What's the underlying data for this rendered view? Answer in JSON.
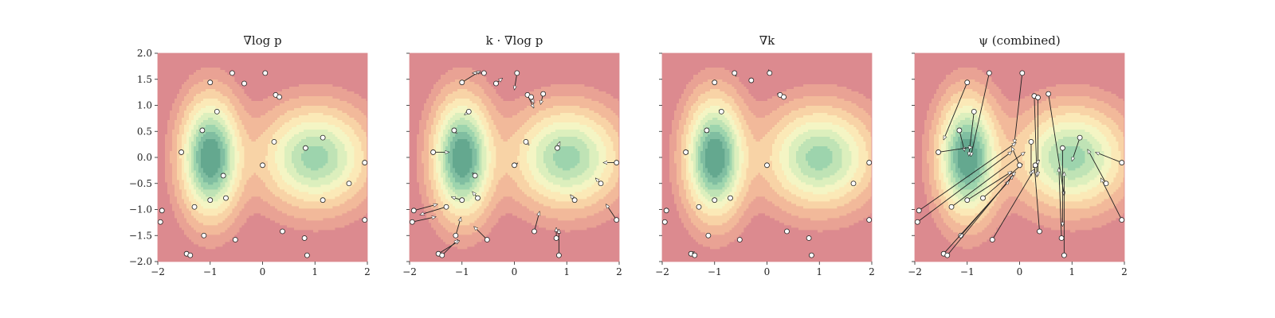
{
  "chart_data": [
    {
      "type": "contour",
      "title": "∇log p",
      "xlim": [
        -2,
        2
      ],
      "ylim": [
        -2,
        2
      ],
      "xticks": [
        "−2",
        "−1",
        "0",
        "1",
        "2"
      ],
      "yticks": [
        "2.0",
        "1.5",
        "1.0",
        "0.5",
        "0.0",
        "−0.5",
        "−1.0",
        "−1.5",
        "−2.0"
      ],
      "show_yticklabels": true,
      "density": {
        "modes": [
          {
            "x": -1,
            "y": 0,
            "sx": 0.35,
            "sy": 0.7,
            "w": 1.0
          },
          {
            "x": 1,
            "y": 0,
            "sx": 0.65,
            "sy": 0.6,
            "w": 0.72
          }
        ]
      },
      "particles": [
        {
          "x": -1.0,
          "y": 1.44,
          "dx": 0.0,
          "dy": 0.0
        },
        {
          "x": -0.58,
          "y": 1.62,
          "dx": 0.0,
          "dy": 0.0
        },
        {
          "x": -0.35,
          "y": 1.42,
          "dx": 0.0,
          "dy": 0.0
        },
        {
          "x": 0.05,
          "y": 1.62,
          "dx": 0.0,
          "dy": 0.0
        },
        {
          "x": 0.25,
          "y": 1.2,
          "dx": 0.0,
          "dy": 0.0
        },
        {
          "x": 0.32,
          "y": 1.16,
          "dx": 0.0,
          "dy": 0.0
        },
        {
          "x": -0.87,
          "y": 0.88,
          "dx": 0.0,
          "dy": 0.0
        },
        {
          "x": -1.15,
          "y": 0.52,
          "dx": 0.0,
          "dy": 0.0
        },
        {
          "x": -1.55,
          "y": 0.1,
          "dx": 0.0,
          "dy": 0.0
        },
        {
          "x": 0.22,
          "y": 0.3,
          "dx": 0.0,
          "dy": 0.0
        },
        {
          "x": 0.82,
          "y": 0.18,
          "dx": 0.0,
          "dy": 0.0
        },
        {
          "x": 1.15,
          "y": 0.38,
          "dx": 0.0,
          "dy": 0.0
        },
        {
          "x": 0.0,
          "y": -0.15,
          "dx": 0.0,
          "dy": 0.0
        },
        {
          "x": -0.75,
          "y": -0.35,
          "dx": 0.0,
          "dy": 0.0
        },
        {
          "x": -0.7,
          "y": -0.78,
          "dx": 0.0,
          "dy": 0.0
        },
        {
          "x": -1.0,
          "y": -0.82,
          "dx": 0.0,
          "dy": 0.0
        },
        {
          "x": -1.3,
          "y": -0.95,
          "dx": 0.0,
          "dy": 0.0
        },
        {
          "x": 1.65,
          "y": -0.5,
          "dx": 0.0,
          "dy": 0.0
        },
        {
          "x": 1.95,
          "y": -0.1,
          "dx": 0.0,
          "dy": 0.0
        },
        {
          "x": 1.15,
          "y": -0.82,
          "dx": 0.0,
          "dy": 0.0
        },
        {
          "x": -1.92,
          "y": -1.02,
          "dx": 0.0,
          "dy": 0.0
        },
        {
          "x": -1.95,
          "y": -1.24,
          "dx": 0.0,
          "dy": 0.0
        },
        {
          "x": 1.95,
          "y": -1.2,
          "dx": 0.0,
          "dy": 0.0
        },
        {
          "x": -1.12,
          "y": -1.5,
          "dx": 0.0,
          "dy": 0.0
        },
        {
          "x": -0.52,
          "y": -1.58,
          "dx": 0.0,
          "dy": 0.0
        },
        {
          "x": 0.38,
          "y": -1.42,
          "dx": 0.0,
          "dy": 0.0
        },
        {
          "x": 0.8,
          "y": -1.55,
          "dx": 0.0,
          "dy": 0.0
        },
        {
          "x": -1.45,
          "y": -1.85,
          "dx": 0.0,
          "dy": 0.0
        },
        {
          "x": -1.38,
          "y": -1.88,
          "dx": 0.0,
          "dy": 0.0
        },
        {
          "x": 0.85,
          "y": -1.88,
          "dx": 0.0,
          "dy": 0.0
        }
      ]
    },
    {
      "type": "contour",
      "title": "k · ∇log p",
      "xlim": [
        -2,
        2
      ],
      "ylim": [
        -2,
        2
      ],
      "xticks": [
        "−2",
        "−1",
        "0",
        "1",
        "2"
      ],
      "yticks": [
        "",
        "",
        "",
        "",
        "",
        "",
        "",
        "",
        ""
      ],
      "show_yticklabels": false,
      "density": {
        "modes": [
          {
            "x": -1,
            "y": 0,
            "sx": 0.35,
            "sy": 0.7,
            "w": 1.0
          },
          {
            "x": 1,
            "y": 0,
            "sx": 0.65,
            "sy": 0.6,
            "w": 0.72
          }
        ]
      },
      "particles": [
        {
          "x": -1.0,
          "y": 1.44,
          "dx": 0.35,
          "dy": 0.22
        },
        {
          "x": -0.58,
          "y": 1.62,
          "dx": -0.22,
          "dy": 0.0
        },
        {
          "x": -0.35,
          "y": 1.42,
          "dx": 0.12,
          "dy": 0.1
        },
        {
          "x": 0.05,
          "y": 1.62,
          "dx": -0.05,
          "dy": -0.32
        },
        {
          "x": 0.25,
          "y": 1.2,
          "dx": 0.12,
          "dy": -0.25
        },
        {
          "x": 0.32,
          "y": 1.16,
          "dx": 0.05,
          "dy": -0.12
        },
        {
          "x": 0.55,
          "y": 1.22,
          "dx": -0.05,
          "dy": -0.2
        },
        {
          "x": -0.87,
          "y": 0.88,
          "dx": -0.08,
          "dy": -0.06
        },
        {
          "x": -1.15,
          "y": 0.52,
          "dx": 0.05,
          "dy": -0.06
        },
        {
          "x": -1.55,
          "y": 0.1,
          "dx": 0.3,
          "dy": 0.0
        },
        {
          "x": 0.22,
          "y": 0.3,
          "dx": 0.06,
          "dy": -0.06
        },
        {
          "x": 0.82,
          "y": 0.18,
          "dx": 0.05,
          "dy": 0.12
        },
        {
          "x": 0.0,
          "y": -0.15,
          "dx": 0.06,
          "dy": 0.04
        },
        {
          "x": -0.75,
          "y": -0.35,
          "dx": -0.05,
          "dy": 0.05
        },
        {
          "x": -0.7,
          "y": -0.78,
          "dx": -0.1,
          "dy": 0.12
        },
        {
          "x": -1.0,
          "y": -0.82,
          "dx": -0.2,
          "dy": 0.06
        },
        {
          "x": -1.3,
          "y": -0.95,
          "dx": -0.5,
          "dy": -0.15
        },
        {
          "x": 1.65,
          "y": -0.5,
          "dx": -0.1,
          "dy": 0.1
        },
        {
          "x": 1.95,
          "y": -0.1,
          "dx": -0.25,
          "dy": 0.0
        },
        {
          "x": 1.15,
          "y": -0.82,
          "dx": -0.08,
          "dy": 0.1
        },
        {
          "x": -1.92,
          "y": -1.02,
          "dx": 0.45,
          "dy": 0.12
        },
        {
          "x": -1.95,
          "y": -1.24,
          "dx": 0.45,
          "dy": 0.1
        },
        {
          "x": 1.95,
          "y": -1.2,
          "dx": -0.2,
          "dy": 0.3
        },
        {
          "x": -1.12,
          "y": -1.5,
          "dx": 0.1,
          "dy": 0.35
        },
        {
          "x": -0.52,
          "y": -1.58,
          "dx": -0.25,
          "dy": 0.25
        },
        {
          "x": 0.38,
          "y": -1.42,
          "dx": 0.1,
          "dy": 0.38
        },
        {
          "x": 0.8,
          "y": -1.55,
          "dx": 0.0,
          "dy": 0.2
        },
        {
          "x": -1.45,
          "y": -1.85,
          "dx": 0.4,
          "dy": 0.25
        },
        {
          "x": -1.38,
          "y": -1.88,
          "dx": 0.3,
          "dy": 0.3
        },
        {
          "x": 0.85,
          "y": -1.88,
          "dx": 0.0,
          "dy": 0.5
        }
      ]
    },
    {
      "type": "contour",
      "title": "∇k",
      "xlim": [
        -2,
        2
      ],
      "ylim": [
        -2,
        2
      ],
      "xticks": [
        "−2",
        "−1",
        "0",
        "1",
        "2"
      ],
      "yticks": [
        "",
        "",
        "",
        "",
        "",
        "",
        "",
        "",
        ""
      ],
      "show_yticklabels": false,
      "density": {
        "modes": [
          {
            "x": -1,
            "y": 0,
            "sx": 0.35,
            "sy": 0.7,
            "w": 1.0
          },
          {
            "x": 1,
            "y": 0,
            "sx": 0.65,
            "sy": 0.6,
            "w": 0.72
          }
        ]
      },
      "particles": [
        {
          "x": -1.0,
          "y": 1.44,
          "dx": -0.04,
          "dy": 0.02
        },
        {
          "x": -0.62,
          "y": 1.62,
          "dx": 0.03,
          "dy": -0.06
        },
        {
          "x": -0.3,
          "y": 1.48,
          "dx": -0.03,
          "dy": 0.02
        },
        {
          "x": 0.05,
          "y": 1.62,
          "dx": -0.02,
          "dy": 0.06
        },
        {
          "x": 0.25,
          "y": 1.2,
          "dx": -0.05,
          "dy": 0.02
        },
        {
          "x": 0.32,
          "y": 1.16,
          "dx": 0.04,
          "dy": -0.02
        },
        {
          "x": -0.87,
          "y": 0.88,
          "dx": -0.04,
          "dy": 0.03
        },
        {
          "x": -1.15,
          "y": 0.52,
          "dx": 0.0,
          "dy": 0.03
        },
        {
          "x": -1.55,
          "y": 0.1,
          "dx": -0.02,
          "dy": 0.0
        },
        {
          "x": 0.0,
          "y": -0.15,
          "dx": 0.0,
          "dy": 0.0
        },
        {
          "x": -1.0,
          "y": -0.82,
          "dx": 0.0,
          "dy": 0.0
        },
        {
          "x": -1.3,
          "y": -0.95,
          "dx": 0.0,
          "dy": 0.0
        },
        {
          "x": -0.7,
          "y": -0.78,
          "dx": 0.0,
          "dy": 0.0
        },
        {
          "x": 1.65,
          "y": -0.5,
          "dx": 0.0,
          "dy": 0.0
        },
        {
          "x": 1.95,
          "y": -0.1,
          "dx": 0.0,
          "dy": 0.0
        },
        {
          "x": -1.92,
          "y": -1.02,
          "dx": 0.04,
          "dy": 0.0
        },
        {
          "x": -1.95,
          "y": -1.24,
          "dx": 0.04,
          "dy": 0.0
        },
        {
          "x": 1.95,
          "y": -1.2,
          "dx": 0.0,
          "dy": 0.0
        },
        {
          "x": -1.12,
          "y": -1.5,
          "dx": 0.0,
          "dy": 0.0
        },
        {
          "x": -0.52,
          "y": -1.58,
          "dx": 0.0,
          "dy": 0.0
        },
        {
          "x": 0.38,
          "y": -1.42,
          "dx": 0.0,
          "dy": 0.0
        },
        {
          "x": 0.8,
          "y": -1.55,
          "dx": 0.0,
          "dy": 0.0
        },
        {
          "x": -1.45,
          "y": -1.85,
          "dx": 0.06,
          "dy": 0.04
        },
        {
          "x": -1.38,
          "y": -1.88,
          "dx": -0.04,
          "dy": 0.04
        },
        {
          "x": 0.85,
          "y": -1.88,
          "dx": 0.0,
          "dy": 0.0
        }
      ]
    },
    {
      "type": "contour",
      "title": "ψ (combined)",
      "xlim": [
        -2,
        2
      ],
      "ylim": [
        -2,
        2
      ],
      "xticks": [
        "−2",
        "−1",
        "0",
        "1",
        "2"
      ],
      "yticks": [
        "",
        "",
        "",
        "",
        "",
        "",
        "",
        "",
        ""
      ],
      "show_yticklabels": false,
      "density": {
        "modes": [
          {
            "x": -1,
            "y": 0,
            "sx": 0.35,
            "sy": 0.7,
            "w": 1.0
          },
          {
            "x": 1,
            "y": 0,
            "sx": 0.65,
            "sy": 0.6,
            "w": 0.72
          }
        ]
      },
      "particles": [
        {
          "x": -1.0,
          "y": 1.44,
          "dx": -0.45,
          "dy": -1.1
        },
        {
          "x": -0.58,
          "y": 1.62,
          "dx": -0.35,
          "dy": -1.6
        },
        {
          "x": 0.05,
          "y": 1.62,
          "dx": -0.15,
          "dy": -1.35
        },
        {
          "x": 0.28,
          "y": 1.18,
          "dx": 0.05,
          "dy": -1.55
        },
        {
          "x": 0.35,
          "y": 1.15,
          "dx": 0.0,
          "dy": -1.5
        },
        {
          "x": 0.55,
          "y": 1.22,
          "dx": 0.3,
          "dy": -1.95
        },
        {
          "x": -0.87,
          "y": 0.88,
          "dx": -0.1,
          "dy": -0.85
        },
        {
          "x": -1.15,
          "y": 0.52,
          "dx": 0.1,
          "dy": -0.4
        },
        {
          "x": -1.55,
          "y": 0.1,
          "dx": 0.65,
          "dy": 0.1
        },
        {
          "x": 0.22,
          "y": 0.3,
          "dx": 0.0,
          "dy": -0.65
        },
        {
          "x": 0.82,
          "y": 0.18,
          "dx": 0.0,
          "dy": -1.5
        },
        {
          "x": 1.15,
          "y": 0.38,
          "dx": -0.15,
          "dy": -0.45
        },
        {
          "x": 1.95,
          "y": -0.1,
          "dx": -0.5,
          "dy": 0.2
        },
        {
          "x": 1.65,
          "y": -0.5,
          "dx": -0.35,
          "dy": 0.65
        },
        {
          "x": 1.95,
          "y": -1.2,
          "dx": -0.4,
          "dy": 0.8
        },
        {
          "x": -1.92,
          "y": -1.02,
          "dx": 1.85,
          "dy": 1.3
        },
        {
          "x": -1.95,
          "y": -1.24,
          "dx": 1.8,
          "dy": 1.35
        },
        {
          "x": -1.0,
          "y": -0.82,
          "dx": 0.85,
          "dy": 0.55
        },
        {
          "x": -1.3,
          "y": -0.95,
          "dx": 1.4,
          "dy": 1.05
        },
        {
          "x": -0.7,
          "y": -0.78,
          "dx": 0.75,
          "dy": 0.65
        },
        {
          "x": -1.12,
          "y": -1.5,
          "dx": 1.0,
          "dy": 1.15
        },
        {
          "x": -1.45,
          "y": -1.85,
          "dx": 1.25,
          "dy": 1.4
        },
        {
          "x": -1.38,
          "y": -1.88,
          "dx": 1.3,
          "dy": 1.6
        },
        {
          "x": -0.52,
          "y": -1.58,
          "dx": 0.8,
          "dy": 1.35
        },
        {
          "x": 0.38,
          "y": -1.42,
          "dx": -0.1,
          "dy": 1.3
        },
        {
          "x": 0.8,
          "y": -1.55,
          "dx": -0.05,
          "dy": 1.35
        },
        {
          "x": 0.85,
          "y": -1.88,
          "dx": 0.0,
          "dy": 1.6
        },
        {
          "x": 0.0,
          "y": -0.15,
          "dx": -0.15,
          "dy": 0.35
        },
        {
          "x": 0.3,
          "y": -0.15,
          "dx": 0.08,
          "dy": 0.1
        }
      ]
    }
  ]
}
